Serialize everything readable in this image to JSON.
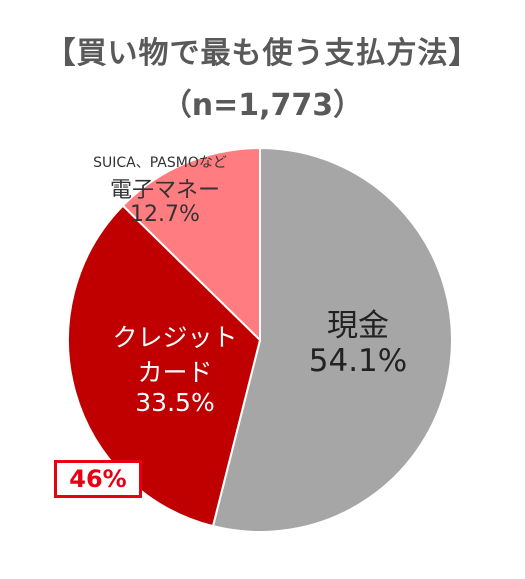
{
  "chart_data": {
    "type": "pie",
    "title": "【買い物で最も使う支払方法】",
    "subtitle": "（n=1,773）",
    "slices": [
      {
        "label": "現金",
        "label_lines": [
          "現金"
        ],
        "value": 54.1,
        "value_label": "54.1%",
        "color": "#a6a6a6"
      },
      {
        "label": "クレジットカード",
        "label_lines": [
          "クレジット",
          "カード"
        ],
        "value": 33.5,
        "value_label": "33.5%",
        "color": "#c00000"
      },
      {
        "label": "電子マネー",
        "sublabel": "SUICA、PASMOなど",
        "label_lines": [
          "電子マネー"
        ],
        "value": 12.7,
        "value_label": "12.7%",
        "color": "#ff7c80"
      }
    ],
    "annotation": "46%"
  },
  "colors": {
    "title": "#595959",
    "annotation_border": "#e60012"
  }
}
